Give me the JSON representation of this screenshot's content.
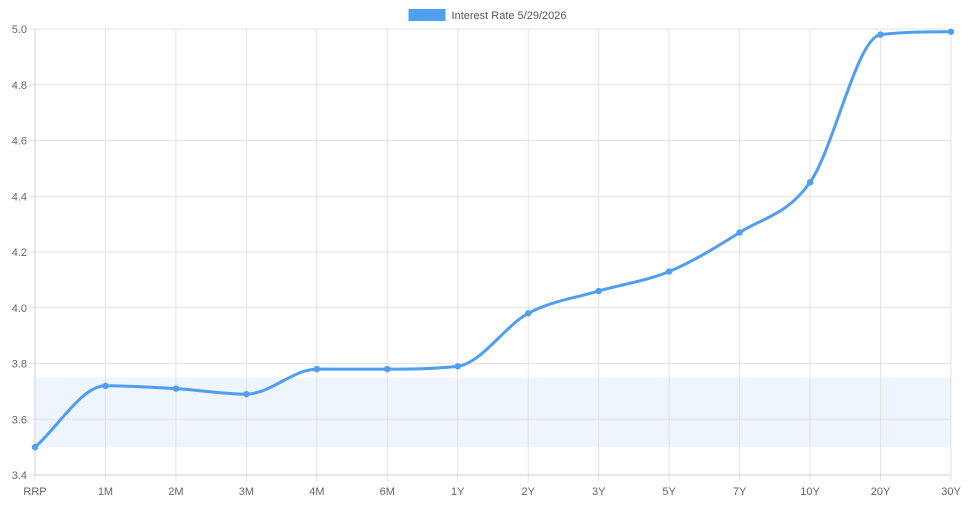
{
  "chart_data": {
    "type": "line",
    "categories": [
      "RRP",
      "1M",
      "2M",
      "3M",
      "4M",
      "6M",
      "1Y",
      "2Y",
      "3Y",
      "5Y",
      "7Y",
      "10Y",
      "20Y",
      "30Y"
    ],
    "series": [
      {
        "name": "Interest Rate 5/29/2026",
        "values": [
          3.5,
          3.72,
          3.71,
          3.69,
          3.78,
          3.78,
          3.79,
          3.98,
          4.06,
          4.13,
          4.27,
          4.45,
          4.98,
          4.99
        ],
        "color": "#4f9ef0"
      }
    ],
    "ylim": [
      3.4,
      5.0
    ],
    "yticks": [
      "3.4",
      "3.6",
      "3.8",
      "4.0",
      "4.2",
      "4.4",
      "4.6",
      "4.8",
      "5.0"
    ],
    "band": {
      "from": 3.5,
      "to": 3.75,
      "color": "#eef5fd"
    },
    "grid": true,
    "legend": "top-center",
    "title": "",
    "xlabel": "",
    "ylabel": ""
  }
}
